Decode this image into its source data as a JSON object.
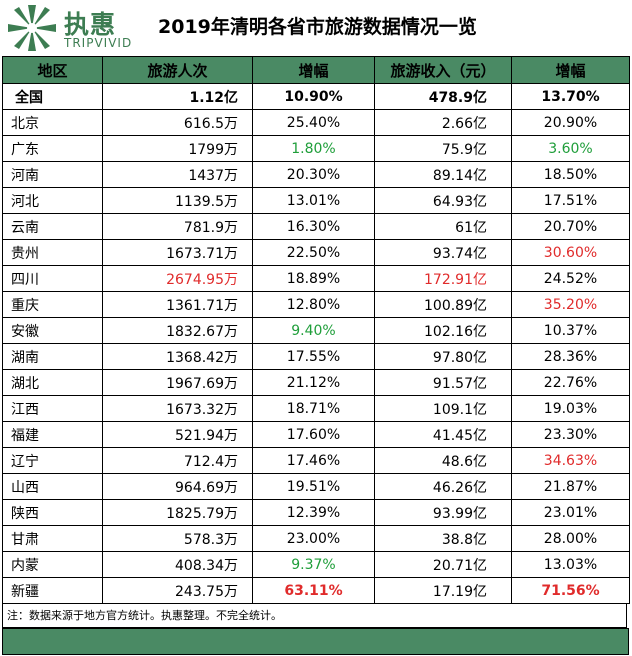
{
  "brand": {
    "cn": "执惠",
    "en": "TRIPVIVID",
    "logo_icon": "star-burst-icon",
    "color": "#3d7d52"
  },
  "title": "2019年清明各省市旅游数据情况一览",
  "table": {
    "headers": [
      "地区",
      "旅游人次",
      "增幅",
      "旅游收入（元）",
      "增幅"
    ],
    "header_bg": "#4a8a64",
    "rows": [
      {
        "cells": [
          "全国",
          "1.12亿",
          "10.90%",
          "478.9亿",
          "13.70%"
        ],
        "styles": [
          "",
          "",
          "",
          "",
          ""
        ],
        "total": true
      },
      {
        "cells": [
          "北京",
          "616.5万",
          "25.40%",
          "2.66亿",
          "20.90%"
        ],
        "styles": [
          "",
          "",
          "",
          "",
          ""
        ]
      },
      {
        "cells": [
          "广东",
          "1799万",
          "1.80%",
          "75.9亿",
          "3.60%"
        ],
        "styles": [
          "",
          "",
          "green",
          "",
          "green"
        ]
      },
      {
        "cells": [
          "河南",
          "1437万",
          "20.30%",
          "89.14亿",
          "18.50%"
        ],
        "styles": [
          "",
          "",
          "",
          "",
          ""
        ]
      },
      {
        "cells": [
          "河北",
          "1139.5万",
          "13.01%",
          "64.93亿",
          "17.51%"
        ],
        "styles": [
          "",
          "",
          "",
          "",
          ""
        ]
      },
      {
        "cells": [
          "云南",
          "781.9万",
          "16.30%",
          "61亿",
          "20.70%"
        ],
        "styles": [
          "",
          "",
          "",
          "",
          ""
        ]
      },
      {
        "cells": [
          "贵州",
          "1673.71万",
          "22.50%",
          "93.74亿",
          "30.60%"
        ],
        "styles": [
          "",
          "",
          "",
          "",
          "red"
        ]
      },
      {
        "cells": [
          "四川",
          "2674.95万",
          "18.89%",
          "172.91亿",
          "24.52%"
        ],
        "styles": [
          "",
          "red",
          "",
          "red",
          ""
        ]
      },
      {
        "cells": [
          "重庆",
          "1361.71万",
          "12.80%",
          "100.89亿",
          "35.20%"
        ],
        "styles": [
          "",
          "",
          "",
          "",
          "red"
        ]
      },
      {
        "cells": [
          "安徽",
          "1832.67万",
          "9.40%",
          "102.16亿",
          "10.37%"
        ],
        "styles": [
          "",
          "",
          "green",
          "",
          ""
        ]
      },
      {
        "cells": [
          "湖南",
          "1368.42万",
          "17.55%",
          "97.80亿",
          "28.36%"
        ],
        "styles": [
          "",
          "",
          "",
          "",
          ""
        ]
      },
      {
        "cells": [
          "湖北",
          "1967.69万",
          "21.12%",
          "91.57亿",
          "22.76%"
        ],
        "styles": [
          "",
          "",
          "",
          "",
          ""
        ]
      },
      {
        "cells": [
          "江西",
          "1673.32万",
          "18.71%",
          "109.1亿",
          "19.03%"
        ],
        "styles": [
          "",
          "",
          "",
          "",
          ""
        ]
      },
      {
        "cells": [
          "福建",
          "521.94万",
          "17.60%",
          "41.45亿",
          "23.30%"
        ],
        "styles": [
          "",
          "",
          "",
          "",
          ""
        ]
      },
      {
        "cells": [
          "辽宁",
          "712.4万",
          "17.46%",
          "48.6亿",
          "34.63%"
        ],
        "styles": [
          "",
          "",
          "",
          "",
          "red"
        ]
      },
      {
        "cells": [
          "山西",
          "964.69万",
          "19.51%",
          "46.26亿",
          "21.87%"
        ],
        "styles": [
          "",
          "",
          "",
          "",
          ""
        ]
      },
      {
        "cells": [
          "陕西",
          "1825.79万",
          "12.39%",
          "93.99亿",
          "23.01%"
        ],
        "styles": [
          "",
          "",
          "",
          "",
          ""
        ]
      },
      {
        "cells": [
          "甘肃",
          "578.3万",
          "23.00%",
          "38.8亿",
          "28.00%"
        ],
        "styles": [
          "",
          "",
          "",
          "",
          ""
        ]
      },
      {
        "cells": [
          "内蒙",
          "408.34万",
          "9.37%",
          "20.71亿",
          "13.03%"
        ],
        "styles": [
          "",
          "",
          "green",
          "",
          ""
        ]
      },
      {
        "cells": [
          "新疆",
          "243.75万",
          "63.11%",
          "17.19亿",
          "71.56%"
        ],
        "styles": [
          "",
          "",
          "boldred",
          "",
          "boldred"
        ]
      }
    ]
  },
  "note": "注：数据来源于地方官方统计。执惠整理。不完全统计。",
  "colors": {
    "red": "#e02b2b",
    "green": "#1f9e3a",
    "footer_bar": "#4a8a64"
  }
}
